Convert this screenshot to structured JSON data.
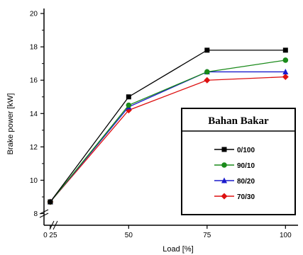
{
  "chart_data": {
    "type": "line",
    "xlabel": "Load [%]",
    "ylabel": "Brake power [kW]",
    "x": [
      25,
      50,
      75,
      100
    ],
    "x_tick_labels": [
      "0 25",
      "50",
      "75",
      "100"
    ],
    "y_ticks": [
      8,
      10,
      12,
      14,
      16,
      18,
      20
    ],
    "y_tick_labels": [
      "8",
      "10",
      "12",
      "14",
      "16",
      "18",
      "20"
    ],
    "xlim": [
      23,
      104
    ],
    "ylim": [
      7.3,
      20.3
    ],
    "legend_title": "Bahan Bakar",
    "legend_position": "lower-right",
    "grid": false,
    "series": [
      {
        "name": "0/100",
        "color": "#000000",
        "marker": "square",
        "values": [
          8.7,
          15.0,
          17.8,
          17.8
        ]
      },
      {
        "name": "90/10",
        "color": "#1a8a1a",
        "marker": "circle",
        "values": [
          8.7,
          14.5,
          16.5,
          17.2
        ]
      },
      {
        "name": "80/20",
        "color": "#1a1acc",
        "marker": "triangle",
        "values": [
          8.7,
          14.4,
          16.5,
          16.5
        ]
      },
      {
        "name": "70/30",
        "color": "#dd1111",
        "marker": "diamond",
        "values": [
          8.7,
          14.2,
          16.0,
          16.2
        ]
      }
    ]
  }
}
